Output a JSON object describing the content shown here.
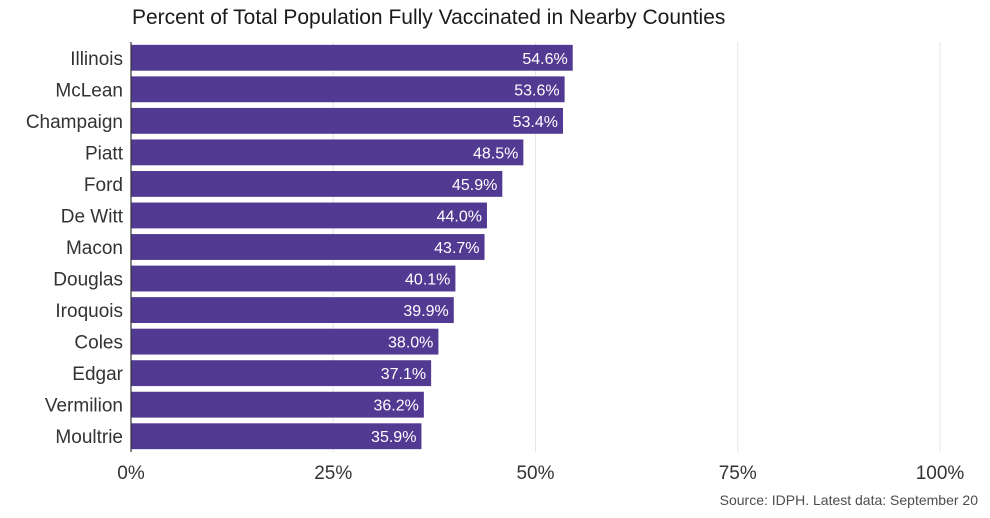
{
  "chart_data": {
    "type": "bar",
    "orientation": "horizontal",
    "title": "Percent of Total Population Fully Vaccinated in Nearby Counties",
    "source": "Source: IDPH. Latest data: September 20",
    "categories": [
      "Illinois",
      "McLean",
      "Champaign",
      "Piatt",
      "Ford",
      "De Witt",
      "Macon",
      "Douglas",
      "Iroquois",
      "Coles",
      "Edgar",
      "Vermilion",
      "Moultrie"
    ],
    "values": [
      54.6,
      53.6,
      53.4,
      48.5,
      45.9,
      44.0,
      43.7,
      40.1,
      39.9,
      38.0,
      37.1,
      36.2,
      35.9
    ],
    "value_labels": [
      "54.6%",
      "53.6%",
      "53.4%",
      "48.5%",
      "45.9%",
      "44.0%",
      "43.7%",
      "40.1%",
      "39.9%",
      "38.0%",
      "37.1%",
      "36.2%",
      "35.9%"
    ],
    "xlim": [
      0,
      100
    ],
    "x_ticks": [
      0,
      25,
      50,
      75,
      100
    ],
    "x_tick_labels": [
      "0%",
      "25%",
      "50%",
      "75%",
      "100%"
    ],
    "grid": "vertical",
    "bar_color": "#523a93",
    "grid_color": "#e5e5e5"
  }
}
